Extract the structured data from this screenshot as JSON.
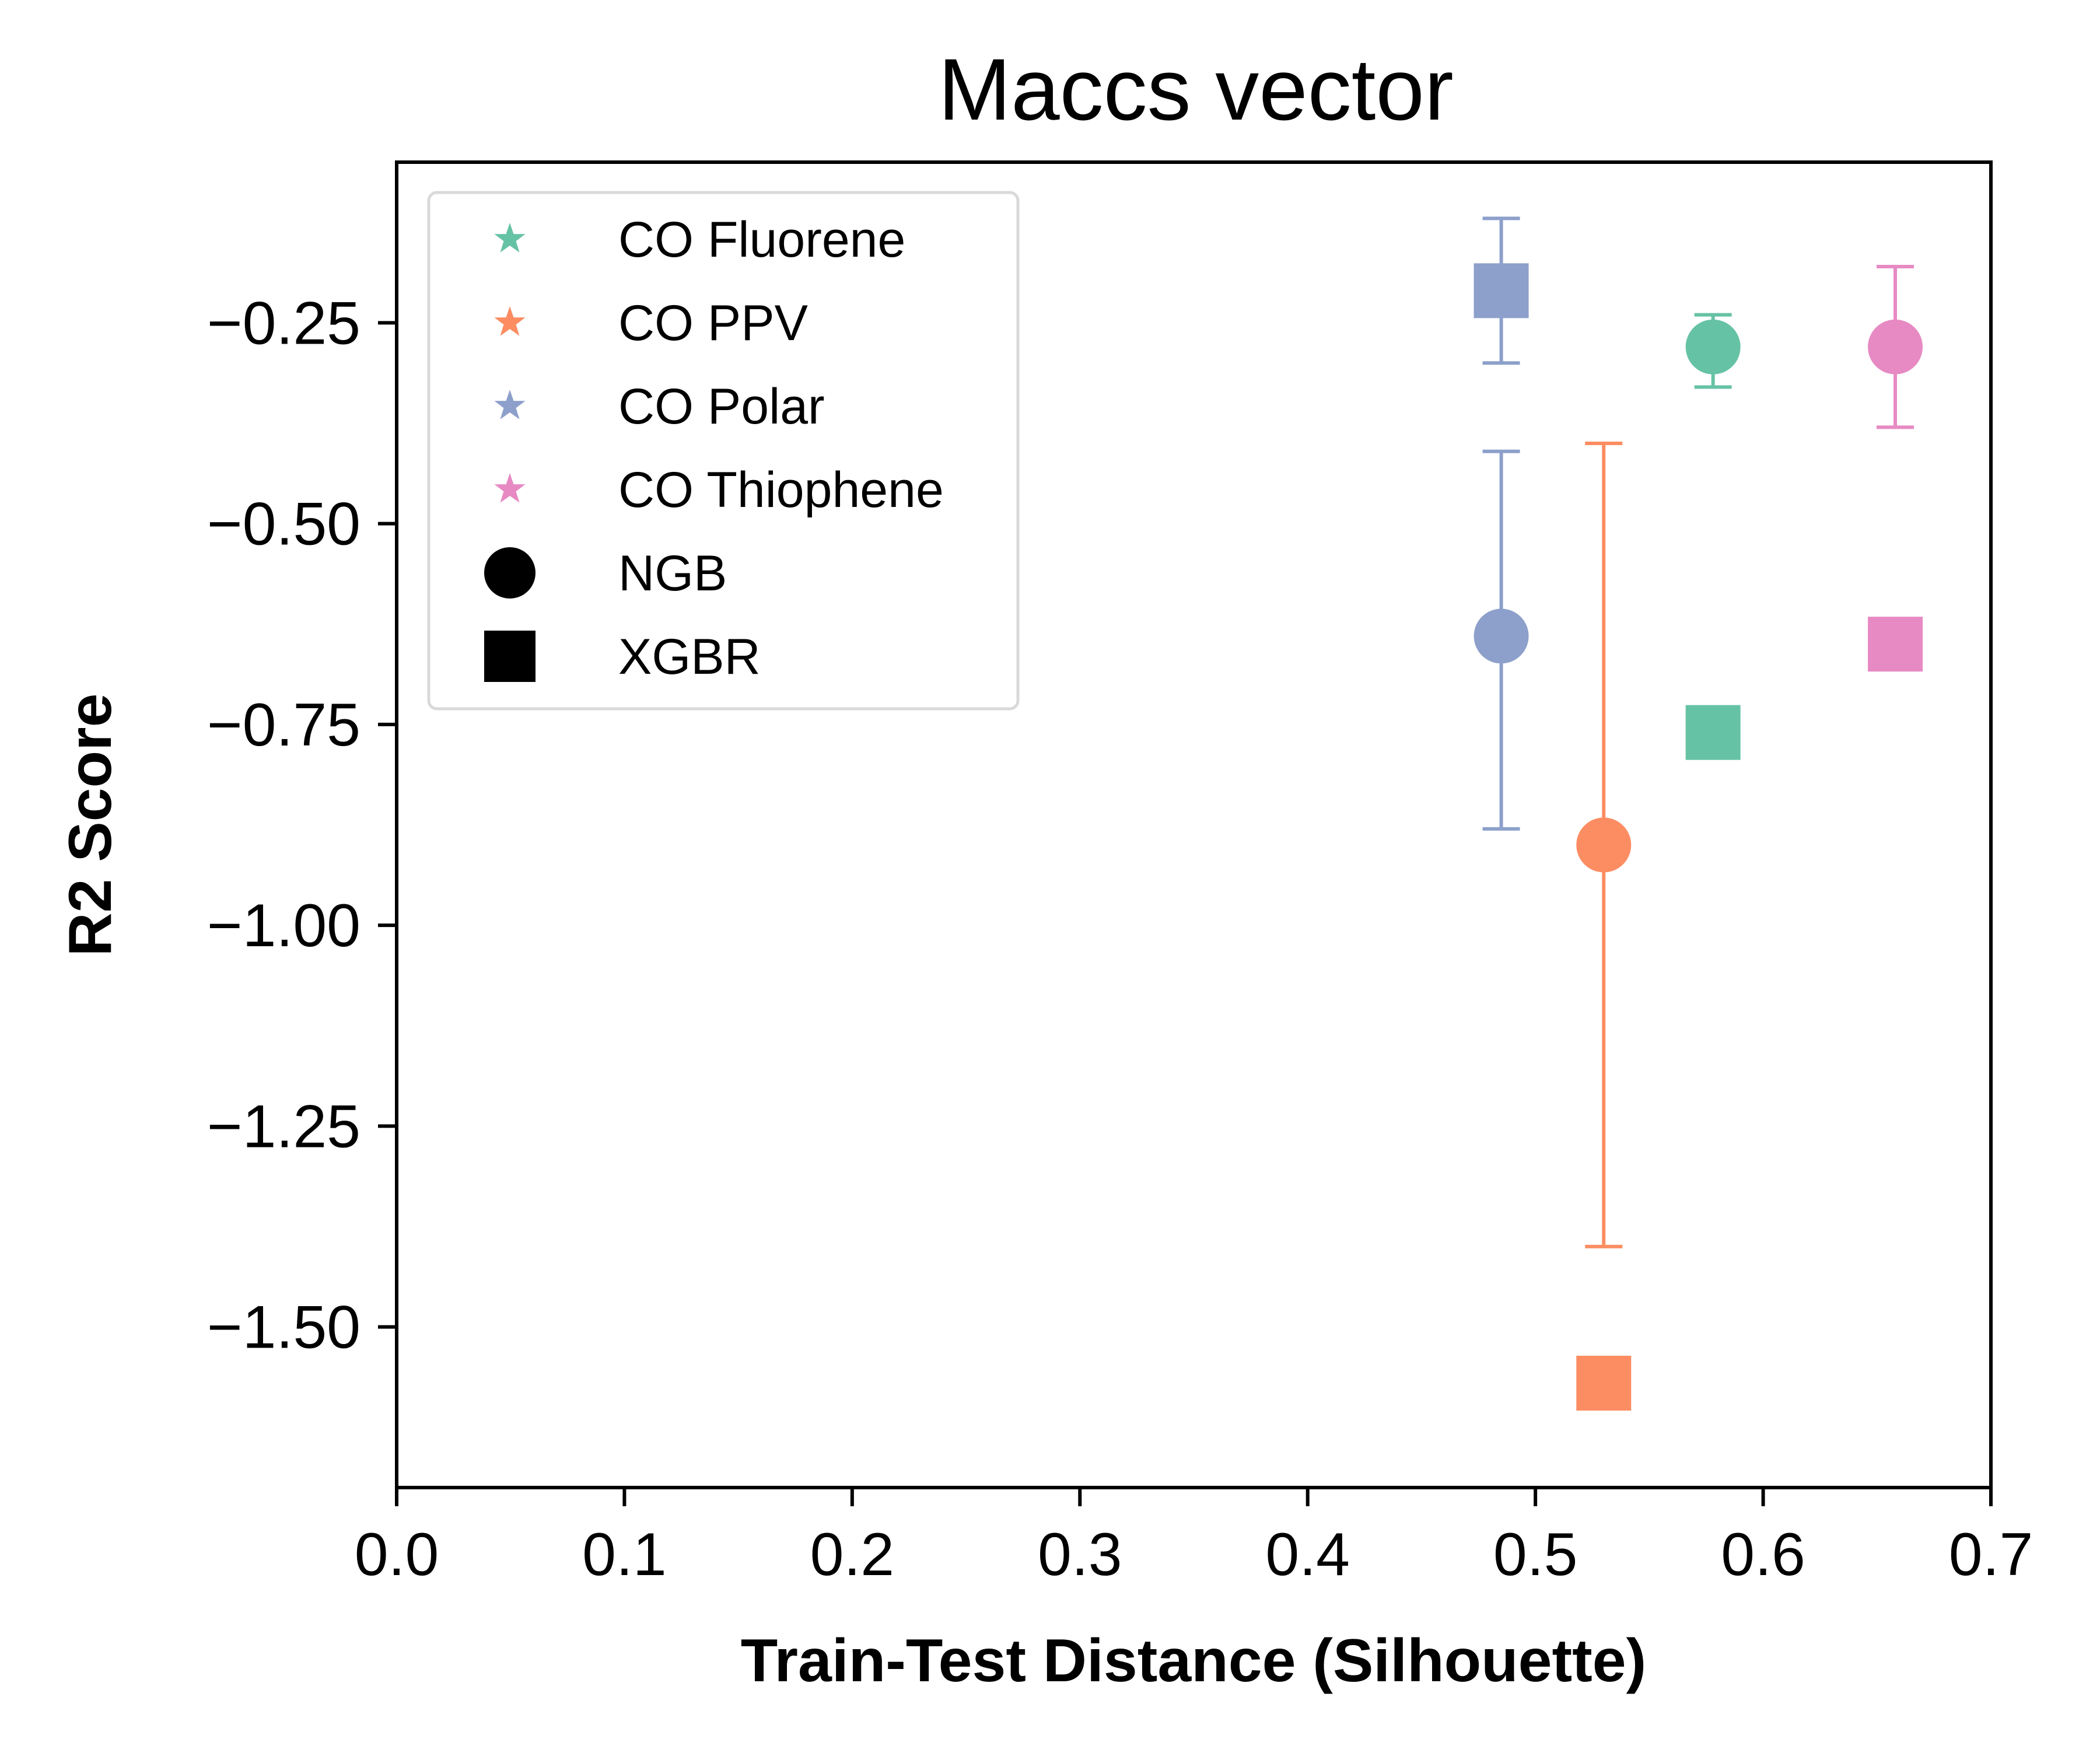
{
  "chart_data": {
    "type": "scatter",
    "title": "Maccs vector",
    "xlabel": "Train-Test Distance (Silhouette)",
    "ylabel": "R2 Score",
    "xlim": [
      0.0,
      0.7
    ],
    "ylim": [
      -1.7,
      -0.05
    ],
    "xticks": [
      0.0,
      0.1,
      0.2,
      0.3,
      0.4,
      0.5,
      0.6,
      0.7
    ],
    "xtick_labels": [
      "0.0",
      "0.1",
      "0.2",
      "0.3",
      "0.4",
      "0.5",
      "0.6",
      "0.7"
    ],
    "yticks": [
      -0.25,
      -0.5,
      -0.75,
      -1.0,
      -1.25,
      -1.5
    ],
    "ytick_labels": [
      "−0.25",
      "−0.50",
      "−0.75",
      "−1.00",
      "−1.25",
      "−1.50"
    ],
    "grid": false,
    "legend_position": "top-left",
    "groups": [
      {
        "name": "CO Fluorene",
        "color": "#66c2a5"
      },
      {
        "name": "CO PPV",
        "color": "#fc8d62"
      },
      {
        "name": "CO Polar",
        "color": "#8da0cb"
      },
      {
        "name": "CO Thiophene",
        "color": "#e78ac3"
      }
    ],
    "models": [
      {
        "name": "NGB",
        "marker": "circle"
      },
      {
        "name": "XGBR",
        "marker": "square"
      }
    ],
    "points": [
      {
        "group": "CO Fluorene",
        "model": "NGB",
        "x": 0.578,
        "y": -0.28,
        "ymin": -0.33,
        "ymax": -0.24
      },
      {
        "group": "CO Fluorene",
        "model": "XGBR",
        "x": 0.578,
        "y": -0.76
      },
      {
        "group": "CO PPV",
        "model": "NGB",
        "x": 0.53,
        "y": -0.9,
        "ymin": -1.4,
        "ymax": -0.4
      },
      {
        "group": "CO PPV",
        "model": "XGBR",
        "x": 0.53,
        "y": -1.57,
        "ymin": -1.6,
        "ymax": -1.54
      },
      {
        "group": "CO Polar",
        "model": "NGB",
        "x": 0.485,
        "y": -0.64,
        "ymin": -0.88,
        "ymax": -0.41
      },
      {
        "group": "CO Polar",
        "model": "XGBR",
        "x": 0.485,
        "y": -0.21,
        "ymin": -0.3,
        "ymax": -0.12
      },
      {
        "group": "CO Thiophene",
        "model": "NGB",
        "x": 0.658,
        "y": -0.28,
        "ymin": -0.38,
        "ymax": -0.18
      },
      {
        "group": "CO Thiophene",
        "model": "XGBR",
        "x": 0.658,
        "y": -0.65
      }
    ]
  }
}
